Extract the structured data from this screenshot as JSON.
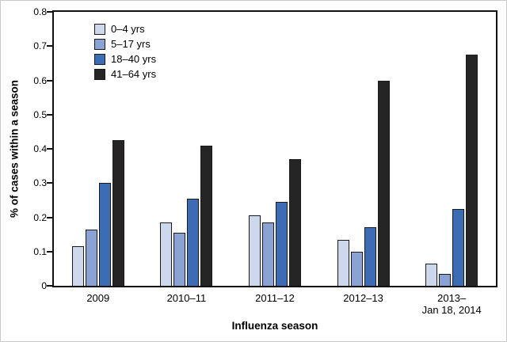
{
  "chart_data": {
    "type": "bar",
    "title": "",
    "xlabel": "Influenza season",
    "ylabel": "% of cases within a season",
    "ylim": [
      0,
      0.8
    ],
    "yticks": [
      0,
      0.1,
      0.2,
      0.3,
      0.4,
      0.5,
      0.6,
      0.7,
      0.8
    ],
    "ytick_labels": [
      "0",
      "0.1",
      "0.2",
      "0.3",
      "0.4",
      "0.5",
      "0.6",
      "0.7",
      "0.8"
    ],
    "categories": [
      "2009",
      "2010–11",
      "2011–12",
      "2012–13",
      "2013–\nJan 18, 2014"
    ],
    "series": [
      {
        "name": "0–4 yrs",
        "color": "#cdd8ec",
        "values": [
          0.115,
          0.185,
          0.205,
          0.135,
          0.065
        ]
      },
      {
        "name": "5–17 yrs",
        "color": "#8aa2d4",
        "values": [
          0.165,
          0.155,
          0.185,
          0.1,
          0.035
        ]
      },
      {
        "name": "18–40 yrs",
        "color": "#3c6cb4",
        "values": [
          0.3,
          0.255,
          0.245,
          0.17,
          0.225
        ]
      },
      {
        "name": "41–64 yrs",
        "color": "#272425",
        "values": [
          0.425,
          0.41,
          0.37,
          0.6,
          0.675
        ]
      }
    ],
    "legend_position": "top-left",
    "grid": false
  }
}
